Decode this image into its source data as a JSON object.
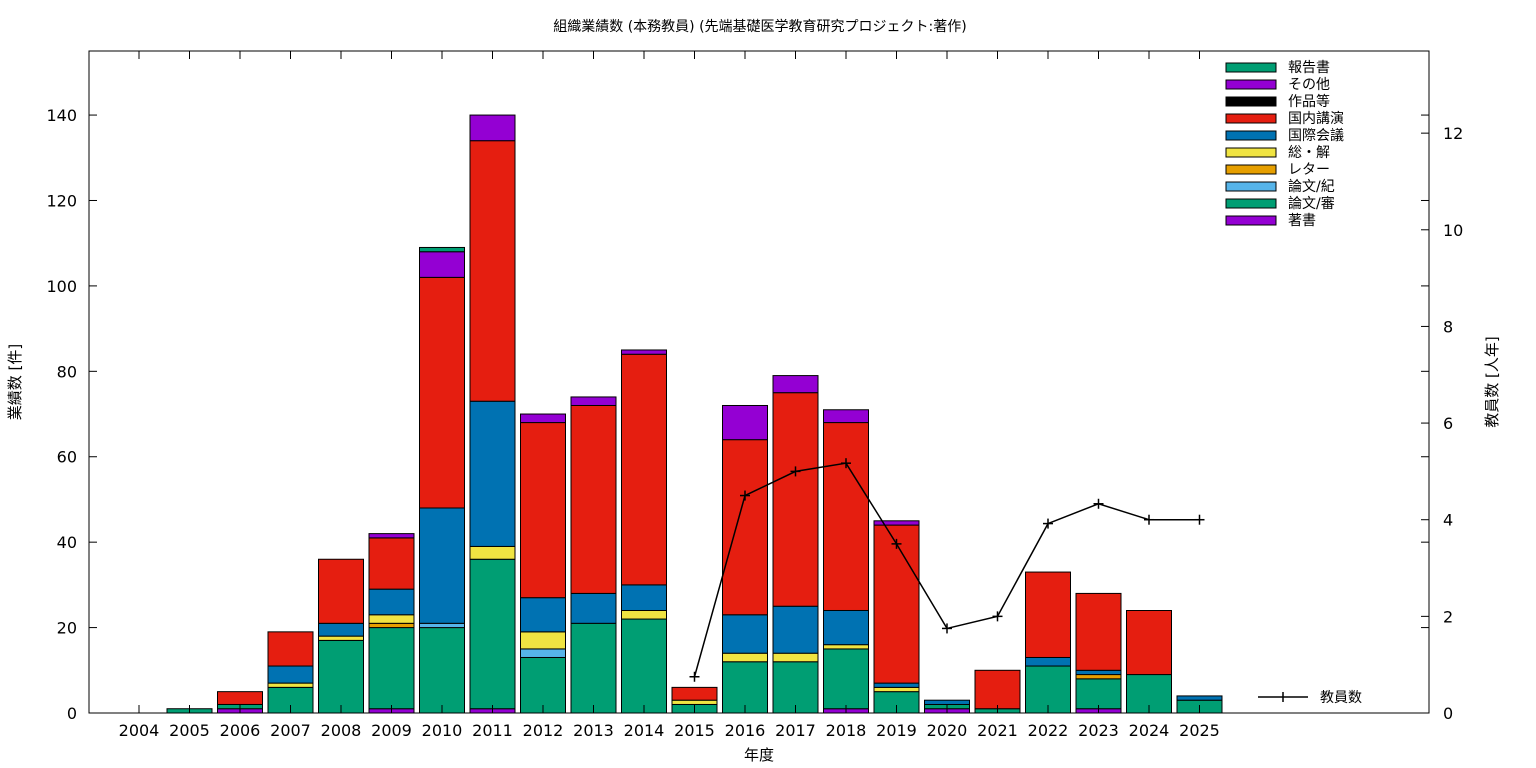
{
  "chart_data": {
    "type": "bar",
    "stacked": true,
    "title": "組織業績数 (本務教員) (先端基礎医学教育研究プロジェクト:著作)",
    "xlabel": "年度",
    "ylabel": "業績数 [件]",
    "y2label": "教員数 [人年]",
    "ylim": [
      0,
      155
    ],
    "y2lim": [
      0,
      13.7
    ],
    "yticks": [
      0,
      20,
      40,
      60,
      80,
      100,
      120,
      140
    ],
    "y2ticks": [
      0,
      2,
      4,
      6,
      8,
      10,
      12
    ],
    "grid": false,
    "legend_position": "top-right",
    "categories": [
      "2004",
      "2005",
      "2006",
      "2007",
      "2008",
      "2009",
      "2010",
      "2011",
      "2012",
      "2013",
      "2014",
      "2015",
      "2016",
      "2017",
      "2018",
      "2019",
      "2020",
      "2021",
      "2022",
      "2023",
      "2024",
      "2025"
    ],
    "series": [
      {
        "name": "著書",
        "color": "#9400d3",
        "values": [
          0,
          0,
          1,
          0,
          0,
          1,
          0,
          1,
          0,
          0,
          0,
          0,
          0,
          0,
          1,
          0,
          1,
          0,
          0,
          1,
          0,
          0
        ]
      },
      {
        "name": "論文/審",
        "color": "#009e73",
        "values": [
          0,
          1,
          1,
          6,
          17,
          19,
          20,
          35,
          13,
          21,
          22,
          2,
          12,
          12,
          14,
          5,
          1,
          1,
          11,
          7,
          9,
          3
        ]
      },
      {
        "name": "論文/紀",
        "color": "#56b4e9",
        "values": [
          0,
          0,
          0,
          0,
          0,
          0,
          1,
          0,
          2,
          0,
          0,
          0,
          0,
          0,
          0,
          0,
          0,
          0,
          0,
          0,
          0,
          0
        ]
      },
      {
        "name": "レター",
        "color": "#e69f00",
        "values": [
          0,
          0,
          0,
          0,
          0,
          1,
          0,
          0,
          0,
          0,
          0,
          0,
          0,
          0,
          0,
          0,
          0,
          0,
          0,
          1,
          0,
          0
        ]
      },
      {
        "name": "総・解",
        "color": "#f0e442",
        "values": [
          0,
          0,
          0,
          1,
          1,
          2,
          0,
          3,
          4,
          0,
          2,
          1,
          2,
          2,
          1,
          1,
          0,
          0,
          0,
          0,
          0,
          0
        ]
      },
      {
        "name": "国際会議",
        "color": "#0072b2",
        "values": [
          0,
          0,
          0,
          4,
          3,
          6,
          27,
          34,
          8,
          7,
          6,
          0,
          9,
          11,
          8,
          1,
          1,
          0,
          2,
          1,
          0,
          1
        ]
      },
      {
        "name": "国内講演",
        "color": "#e51e10",
        "values": [
          0,
          0,
          3,
          8,
          15,
          12,
          54,
          61,
          41,
          44,
          54,
          3,
          41,
          50,
          44,
          37,
          0,
          9,
          20,
          18,
          15,
          0
        ]
      },
      {
        "name": "作品等",
        "color": "#000000",
        "values": [
          0,
          0,
          0,
          0,
          0,
          0,
          0,
          0,
          0,
          0,
          0,
          0,
          0,
          0,
          0,
          0,
          0,
          0,
          0,
          0,
          0,
          0
        ]
      },
      {
        "name": "その他",
        "color": "#9400d3",
        "values": [
          0,
          0,
          0,
          0,
          0,
          1,
          6,
          6,
          2,
          2,
          1,
          0,
          8,
          4,
          3,
          1,
          0,
          0,
          0,
          0,
          0,
          0
        ]
      },
      {
        "name": "報告書",
        "color": "#009e73",
        "values": [
          0,
          0,
          0,
          0,
          0,
          0,
          1,
          0,
          0,
          0,
          0,
          0,
          0,
          0,
          0,
          0,
          0,
          0,
          0,
          0,
          0,
          0
        ]
      }
    ],
    "line_series": {
      "name": "教員数",
      "color": "#000000",
      "axis": "y2",
      "x": [
        "2015",
        "2016",
        "2017",
        "2018",
        "2019",
        "2020",
        "2021",
        "2022",
        "2023",
        "2024",
        "2025"
      ],
      "values": [
        0.75,
        4.5,
        5.0,
        5.17,
        3.5,
        1.75,
        2.0,
        3.92,
        4.33,
        4.0,
        4.0
      ]
    },
    "legend_order": [
      "報告書",
      "その他",
      "作品等",
      "国内講演",
      "国際会議",
      "総・解",
      "レター",
      "論文/紀",
      "論文/審",
      "著書"
    ]
  }
}
